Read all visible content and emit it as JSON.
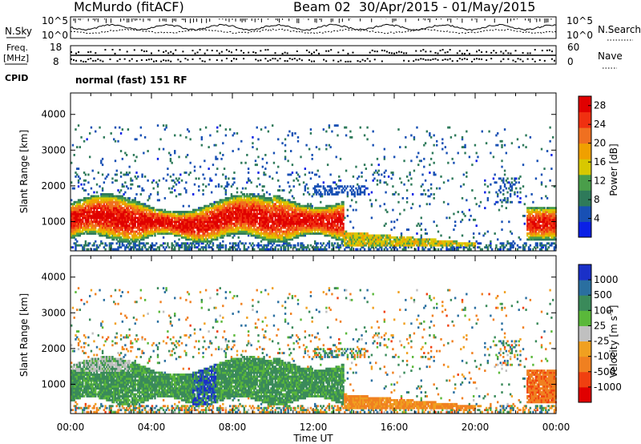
{
  "header": {
    "station": "McMurdo (fitACF)",
    "beam": "Beam 02",
    "date_range": "30/Apr/2015 - 01/May/2015"
  },
  "top_strip": {
    "nsky_label": "N.Sky",
    "nsearch_label": "N.Search",
    "freq_label": "Freq.",
    "freq_unit": "[MHz]",
    "nave_label": "Nave",
    "cpid_label": "CPID",
    "cpid_text": "normal (fast) 151 RF",
    "left_top_tick": "10^5",
    "left_bottom_tick": "10^0",
    "right_top_tick": "10^5",
    "right_bottom_tick": "10^0",
    "freq_ticks": [
      "18",
      "8"
    ],
    "nave_ticks": [
      "60",
      "0"
    ]
  },
  "x_axis": {
    "label": "Time UT",
    "ticks": [
      "00:00",
      "04:00",
      "08:00",
      "12:00",
      "16:00",
      "20:00",
      "00:00"
    ]
  },
  "chart_data": [
    {
      "type": "heatmap",
      "ylabel": "Slant Range [km]",
      "yticks": [
        1000,
        2000,
        3000,
        4000
      ],
      "ylim": [
        180,
        4600
      ],
      "xlim_hours": [
        0,
        24
      ],
      "colorbar": {
        "label": "Power [dB]",
        "ticks": [
          "4",
          "8",
          "12",
          "16",
          "20",
          "24",
          "28"
        ],
        "range": [
          0,
          30
        ],
        "colors": [
          "#0a20e6",
          "#1850b4",
          "#2e7a5a",
          "#4a9e4a",
          "#d8c800",
          "#f0a000",
          "#f07020",
          "#f03010",
          "#e00000"
        ]
      }
    },
    {
      "type": "heatmap",
      "ylabel": "Slant Range [km]",
      "yticks": [
        1000,
        2000,
        3000,
        4000
      ],
      "ylim": [
        180,
        4600
      ],
      "xlim_hours": [
        0,
        24
      ],
      "colorbar": {
        "label": "Velocity [m s-1]",
        "ticks": [
          "1000",
          "500",
          "100",
          "25",
          "-25",
          "-100",
          "-500",
          "-1000"
        ],
        "colors": [
          "#1a30c8",
          "#2a6fa0",
          "#3a8a5a",
          "#5ab83a",
          "#c0c0c0",
          "#f0a020",
          "#f08020",
          "#f04010",
          "#e00000"
        ]
      }
    }
  ]
}
